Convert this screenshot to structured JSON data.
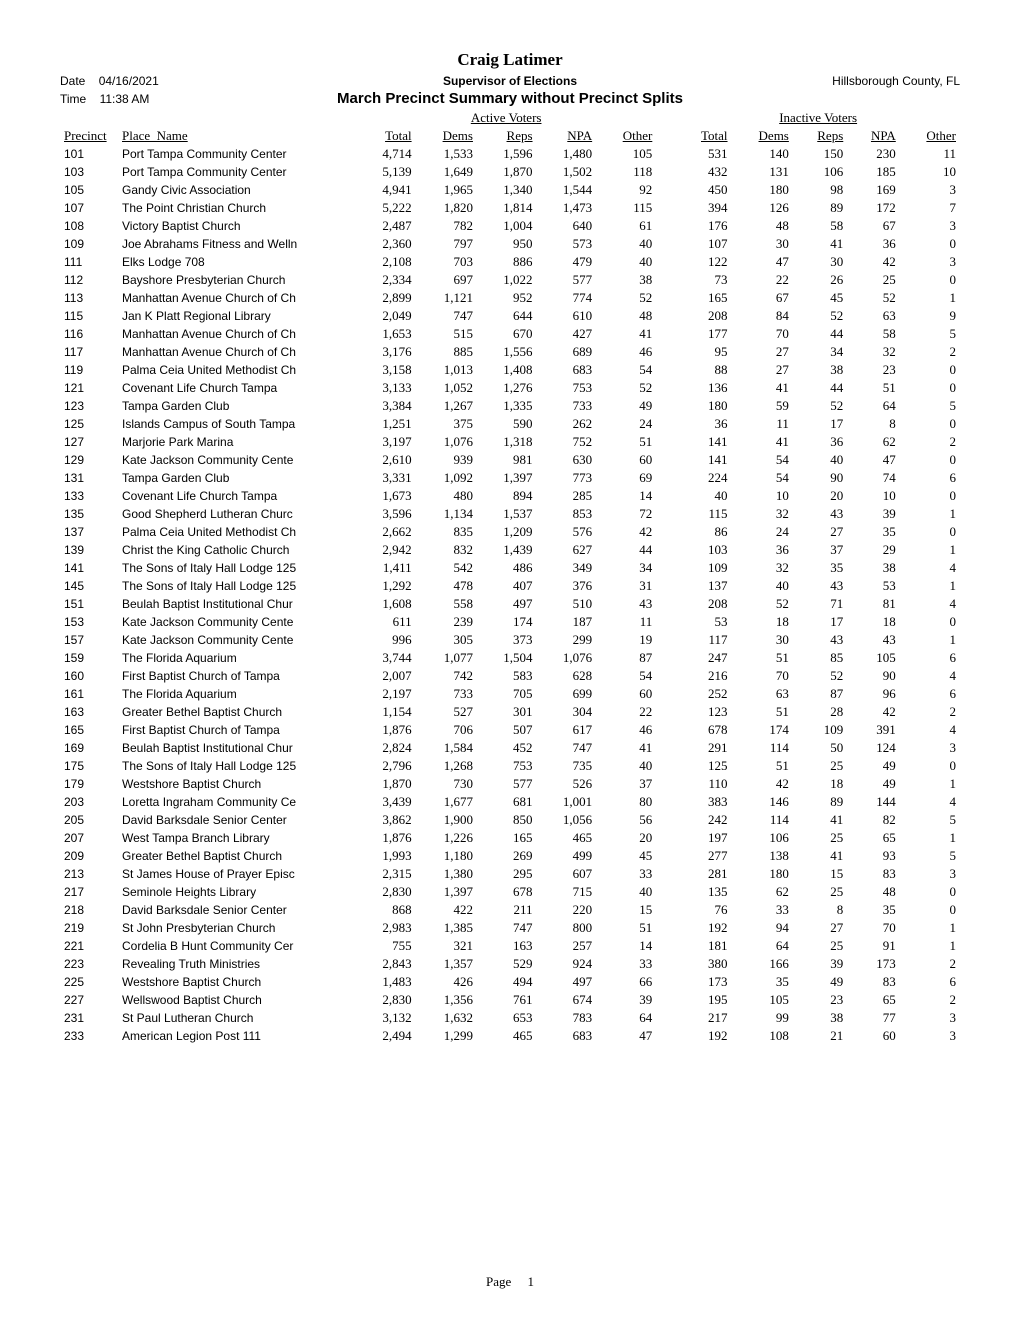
{
  "header": {
    "main_title": "Craig Latimer",
    "date_label": "Date",
    "date_value": "04/16/2021",
    "subtitle_center": "Supervisor of Elections",
    "county": "Hillsborough County, FL",
    "time_label": "Time",
    "time_value": "11:38 AM",
    "report_title": "March Precinct Summary without Precinct Splits"
  },
  "columns": {
    "group_active": "Active Voters",
    "group_inactive": "Inactive Voters",
    "precinct": "Precinct",
    "place": "Place_Name",
    "total": "Total",
    "dems": "Dems",
    "reps": "Reps",
    "npa": "NPA",
    "other": "Other"
  },
  "footer": {
    "page_label": "Page",
    "page_number": "1"
  },
  "rows": [
    {
      "p": "101",
      "n": "Port Tampa Community Center",
      "at": "4,714",
      "ad": "1,533",
      "ar": "1,596",
      "an": "1,480",
      "ao": "105",
      "it": "531",
      "id": "140",
      "ir": "150",
      "in": "230",
      "io": "11"
    },
    {
      "p": "103",
      "n": "Port Tampa Community Center",
      "at": "5,139",
      "ad": "1,649",
      "ar": "1,870",
      "an": "1,502",
      "ao": "118",
      "it": "432",
      "id": "131",
      "ir": "106",
      "in": "185",
      "io": "10"
    },
    {
      "p": "105",
      "n": "Gandy Civic Association",
      "at": "4,941",
      "ad": "1,965",
      "ar": "1,340",
      "an": "1,544",
      "ao": "92",
      "it": "450",
      "id": "180",
      "ir": "98",
      "in": "169",
      "io": "3"
    },
    {
      "p": "107",
      "n": "The Point Christian Church",
      "at": "5,222",
      "ad": "1,820",
      "ar": "1,814",
      "an": "1,473",
      "ao": "115",
      "it": "394",
      "id": "126",
      "ir": "89",
      "in": "172",
      "io": "7"
    },
    {
      "p": "108",
      "n": "Victory Baptist Church",
      "at": "2,487",
      "ad": "782",
      "ar": "1,004",
      "an": "640",
      "ao": "61",
      "it": "176",
      "id": "48",
      "ir": "58",
      "in": "67",
      "io": "3"
    },
    {
      "p": "109",
      "n": "Joe Abrahams Fitness and Welln",
      "at": "2,360",
      "ad": "797",
      "ar": "950",
      "an": "573",
      "ao": "40",
      "it": "107",
      "id": "30",
      "ir": "41",
      "in": "36",
      "io": "0"
    },
    {
      "p": "111",
      "n": "Elks Lodge 708",
      "at": "2,108",
      "ad": "703",
      "ar": "886",
      "an": "479",
      "ao": "40",
      "it": "122",
      "id": "47",
      "ir": "30",
      "in": "42",
      "io": "3"
    },
    {
      "p": "112",
      "n": "Bayshore Presbyterian Church",
      "at": "2,334",
      "ad": "697",
      "ar": "1,022",
      "an": "577",
      "ao": "38",
      "it": "73",
      "id": "22",
      "ir": "26",
      "in": "25",
      "io": "0"
    },
    {
      "p": "113",
      "n": "Manhattan Avenue Church of Ch",
      "at": "2,899",
      "ad": "1,121",
      "ar": "952",
      "an": "774",
      "ao": "52",
      "it": "165",
      "id": "67",
      "ir": "45",
      "in": "52",
      "io": "1"
    },
    {
      "p": "115",
      "n": "Jan K Platt Regional Library",
      "at": "2,049",
      "ad": "747",
      "ar": "644",
      "an": "610",
      "ao": "48",
      "it": "208",
      "id": "84",
      "ir": "52",
      "in": "63",
      "io": "9"
    },
    {
      "p": "116",
      "n": "Manhattan Avenue Church of Ch",
      "at": "1,653",
      "ad": "515",
      "ar": "670",
      "an": "427",
      "ao": "41",
      "it": "177",
      "id": "70",
      "ir": "44",
      "in": "58",
      "io": "5"
    },
    {
      "p": "117",
      "n": "Manhattan Avenue Church of Ch",
      "at": "3,176",
      "ad": "885",
      "ar": "1,556",
      "an": "689",
      "ao": "46",
      "it": "95",
      "id": "27",
      "ir": "34",
      "in": "32",
      "io": "2"
    },
    {
      "p": "119",
      "n": "Palma Ceia United Methodist Ch",
      "at": "3,158",
      "ad": "1,013",
      "ar": "1,408",
      "an": "683",
      "ao": "54",
      "it": "88",
      "id": "27",
      "ir": "38",
      "in": "23",
      "io": "0"
    },
    {
      "p": "121",
      "n": "Covenant Life Church Tampa",
      "at": "3,133",
      "ad": "1,052",
      "ar": "1,276",
      "an": "753",
      "ao": "52",
      "it": "136",
      "id": "41",
      "ir": "44",
      "in": "51",
      "io": "0"
    },
    {
      "p": "123",
      "n": "Tampa Garden Club",
      "at": "3,384",
      "ad": "1,267",
      "ar": "1,335",
      "an": "733",
      "ao": "49",
      "it": "180",
      "id": "59",
      "ir": "52",
      "in": "64",
      "io": "5"
    },
    {
      "p": "125",
      "n": "Islands Campus of South Tampa",
      "at": "1,251",
      "ad": "375",
      "ar": "590",
      "an": "262",
      "ao": "24",
      "it": "36",
      "id": "11",
      "ir": "17",
      "in": "8",
      "io": "0"
    },
    {
      "p": "127",
      "n": "Marjorie Park Marina",
      "at": "3,197",
      "ad": "1,076",
      "ar": "1,318",
      "an": "752",
      "ao": "51",
      "it": "141",
      "id": "41",
      "ir": "36",
      "in": "62",
      "io": "2"
    },
    {
      "p": "129",
      "n": "Kate Jackson Community Cente",
      "at": "2,610",
      "ad": "939",
      "ar": "981",
      "an": "630",
      "ao": "60",
      "it": "141",
      "id": "54",
      "ir": "40",
      "in": "47",
      "io": "0"
    },
    {
      "p": "131",
      "n": "Tampa Garden Club",
      "at": "3,331",
      "ad": "1,092",
      "ar": "1,397",
      "an": "773",
      "ao": "69",
      "it": "224",
      "id": "54",
      "ir": "90",
      "in": "74",
      "io": "6"
    },
    {
      "p": "133",
      "n": "Covenant Life Church Tampa",
      "at": "1,673",
      "ad": "480",
      "ar": "894",
      "an": "285",
      "ao": "14",
      "it": "40",
      "id": "10",
      "ir": "20",
      "in": "10",
      "io": "0"
    },
    {
      "p": "135",
      "n": "Good Shepherd Lutheran Churc",
      "at": "3,596",
      "ad": "1,134",
      "ar": "1,537",
      "an": "853",
      "ao": "72",
      "it": "115",
      "id": "32",
      "ir": "43",
      "in": "39",
      "io": "1"
    },
    {
      "p": "137",
      "n": "Palma Ceia United Methodist Ch",
      "at": "2,662",
      "ad": "835",
      "ar": "1,209",
      "an": "576",
      "ao": "42",
      "it": "86",
      "id": "24",
      "ir": "27",
      "in": "35",
      "io": "0"
    },
    {
      "p": "139",
      "n": "Christ the King Catholic Church",
      "at": "2,942",
      "ad": "832",
      "ar": "1,439",
      "an": "627",
      "ao": "44",
      "it": "103",
      "id": "36",
      "ir": "37",
      "in": "29",
      "io": "1"
    },
    {
      "p": "141",
      "n": "The Sons of Italy Hall Lodge 125",
      "at": "1,411",
      "ad": "542",
      "ar": "486",
      "an": "349",
      "ao": "34",
      "it": "109",
      "id": "32",
      "ir": "35",
      "in": "38",
      "io": "4"
    },
    {
      "p": "145",
      "n": "The Sons of Italy Hall Lodge 125",
      "at": "1,292",
      "ad": "478",
      "ar": "407",
      "an": "376",
      "ao": "31",
      "it": "137",
      "id": "40",
      "ir": "43",
      "in": "53",
      "io": "1"
    },
    {
      "p": "151",
      "n": "Beulah Baptist Institutional Chur",
      "at": "1,608",
      "ad": "558",
      "ar": "497",
      "an": "510",
      "ao": "43",
      "it": "208",
      "id": "52",
      "ir": "71",
      "in": "81",
      "io": "4"
    },
    {
      "p": "153",
      "n": "Kate Jackson Community Cente",
      "at": "611",
      "ad": "239",
      "ar": "174",
      "an": "187",
      "ao": "11",
      "it": "53",
      "id": "18",
      "ir": "17",
      "in": "18",
      "io": "0"
    },
    {
      "p": "157",
      "n": "Kate Jackson Community Cente",
      "at": "996",
      "ad": "305",
      "ar": "373",
      "an": "299",
      "ao": "19",
      "it": "117",
      "id": "30",
      "ir": "43",
      "in": "43",
      "io": "1"
    },
    {
      "p": "159",
      "n": "The Florida Aquarium",
      "at": "3,744",
      "ad": "1,077",
      "ar": "1,504",
      "an": "1,076",
      "ao": "87",
      "it": "247",
      "id": "51",
      "ir": "85",
      "in": "105",
      "io": "6"
    },
    {
      "p": "160",
      "n": "First Baptist Church of Tampa",
      "at": "2,007",
      "ad": "742",
      "ar": "583",
      "an": "628",
      "ao": "54",
      "it": "216",
      "id": "70",
      "ir": "52",
      "in": "90",
      "io": "4"
    },
    {
      "p": "161",
      "n": "The Florida Aquarium",
      "at": "2,197",
      "ad": "733",
      "ar": "705",
      "an": "699",
      "ao": "60",
      "it": "252",
      "id": "63",
      "ir": "87",
      "in": "96",
      "io": "6"
    },
    {
      "p": "163",
      "n": "Greater Bethel Baptist Church",
      "at": "1,154",
      "ad": "527",
      "ar": "301",
      "an": "304",
      "ao": "22",
      "it": "123",
      "id": "51",
      "ir": "28",
      "in": "42",
      "io": "2"
    },
    {
      "p": "165",
      "n": "First Baptist Church of Tampa",
      "at": "1,876",
      "ad": "706",
      "ar": "507",
      "an": "617",
      "ao": "46",
      "it": "678",
      "id": "174",
      "ir": "109",
      "in": "391",
      "io": "4"
    },
    {
      "p": "169",
      "n": "Beulah Baptist Institutional Chur",
      "at": "2,824",
      "ad": "1,584",
      "ar": "452",
      "an": "747",
      "ao": "41",
      "it": "291",
      "id": "114",
      "ir": "50",
      "in": "124",
      "io": "3"
    },
    {
      "p": "175",
      "n": "The Sons of Italy Hall Lodge 125",
      "at": "2,796",
      "ad": "1,268",
      "ar": "753",
      "an": "735",
      "ao": "40",
      "it": "125",
      "id": "51",
      "ir": "25",
      "in": "49",
      "io": "0"
    },
    {
      "p": "179",
      "n": "Westshore Baptist Church",
      "at": "1,870",
      "ad": "730",
      "ar": "577",
      "an": "526",
      "ao": "37",
      "it": "110",
      "id": "42",
      "ir": "18",
      "in": "49",
      "io": "1"
    },
    {
      "p": "203",
      "n": "Loretta Ingraham Community Ce",
      "at": "3,439",
      "ad": "1,677",
      "ar": "681",
      "an": "1,001",
      "ao": "80",
      "it": "383",
      "id": "146",
      "ir": "89",
      "in": "144",
      "io": "4"
    },
    {
      "p": "205",
      "n": "David Barksdale Senior Center",
      "at": "3,862",
      "ad": "1,900",
      "ar": "850",
      "an": "1,056",
      "ao": "56",
      "it": "242",
      "id": "114",
      "ir": "41",
      "in": "82",
      "io": "5"
    },
    {
      "p": "207",
      "n": "West Tampa Branch Library",
      "at": "1,876",
      "ad": "1,226",
      "ar": "165",
      "an": "465",
      "ao": "20",
      "it": "197",
      "id": "106",
      "ir": "25",
      "in": "65",
      "io": "1"
    },
    {
      "p": "209",
      "n": "Greater Bethel Baptist Church",
      "at": "1,993",
      "ad": "1,180",
      "ar": "269",
      "an": "499",
      "ao": "45",
      "it": "277",
      "id": "138",
      "ir": "41",
      "in": "93",
      "io": "5"
    },
    {
      "p": "213",
      "n": "St James House of Prayer Episc",
      "at": "2,315",
      "ad": "1,380",
      "ar": "295",
      "an": "607",
      "ao": "33",
      "it": "281",
      "id": "180",
      "ir": "15",
      "in": "83",
      "io": "3"
    },
    {
      "p": "217",
      "n": "Seminole Heights Library",
      "at": "2,830",
      "ad": "1,397",
      "ar": "678",
      "an": "715",
      "ao": "40",
      "it": "135",
      "id": "62",
      "ir": "25",
      "in": "48",
      "io": "0"
    },
    {
      "p": "218",
      "n": "David Barksdale Senior Center",
      "at": "868",
      "ad": "422",
      "ar": "211",
      "an": "220",
      "ao": "15",
      "it": "76",
      "id": "33",
      "ir": "8",
      "in": "35",
      "io": "0"
    },
    {
      "p": "219",
      "n": "St John Presbyterian Church",
      "at": "2,983",
      "ad": "1,385",
      "ar": "747",
      "an": "800",
      "ao": "51",
      "it": "192",
      "id": "94",
      "ir": "27",
      "in": "70",
      "io": "1"
    },
    {
      "p": "221",
      "n": "Cordelia B Hunt Community Cer",
      "at": "755",
      "ad": "321",
      "ar": "163",
      "an": "257",
      "ao": "14",
      "it": "181",
      "id": "64",
      "ir": "25",
      "in": "91",
      "io": "1"
    },
    {
      "p": "223",
      "n": "Revealing Truth Ministries",
      "at": "2,843",
      "ad": "1,357",
      "ar": "529",
      "an": "924",
      "ao": "33",
      "it": "380",
      "id": "166",
      "ir": "39",
      "in": "173",
      "io": "2"
    },
    {
      "p": "225",
      "n": "Westshore Baptist Church",
      "at": "1,483",
      "ad": "426",
      "ar": "494",
      "an": "497",
      "ao": "66",
      "it": "173",
      "id": "35",
      "ir": "49",
      "in": "83",
      "io": "6"
    },
    {
      "p": "227",
      "n": "Wellswood Baptist Church",
      "at": "2,830",
      "ad": "1,356",
      "ar": "761",
      "an": "674",
      "ao": "39",
      "it": "195",
      "id": "105",
      "ir": "23",
      "in": "65",
      "io": "2"
    },
    {
      "p": "231",
      "n": "St Paul Lutheran Church",
      "at": "3,132",
      "ad": "1,632",
      "ar": "653",
      "an": "783",
      "ao": "64",
      "it": "217",
      "id": "99",
      "ir": "38",
      "in": "77",
      "io": "3"
    },
    {
      "p": "233",
      "n": "American Legion Post 111",
      "at": "2,494",
      "ad": "1,299",
      "ar": "465",
      "an": "683",
      "ao": "47",
      "it": "192",
      "id": "108",
      "ir": "21",
      "in": "60",
      "io": "3"
    }
  ]
}
